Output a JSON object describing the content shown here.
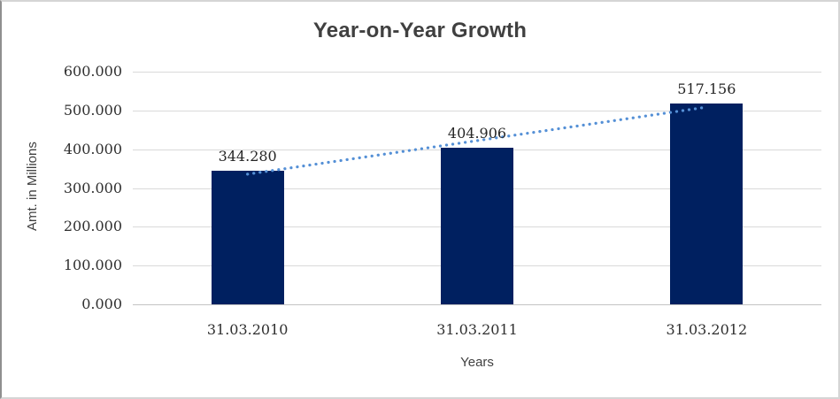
{
  "chart_data": {
    "type": "bar",
    "title": "Year-on-Year Growth",
    "xlabel": "Years",
    "ylabel": "Amt. in Millions",
    "categories": [
      "31.03.2010",
      "31.03.2011",
      "31.03.2012"
    ],
    "values": [
      344.28,
      404.906,
      517.156
    ],
    "data_labels": [
      "344.280",
      "404.906",
      "517.156"
    ],
    "ylim": [
      0,
      600
    ],
    "ytick_step": 100,
    "ytick_labels_top_to_bottom": [
      "600.000",
      "500.000",
      "400.000",
      "300.000",
      "200.000",
      "100.000",
      "0.000"
    ],
    "grid": true,
    "legend": false,
    "trendline": {
      "type": "linear",
      "style": "dotted",
      "start_value": 335.676,
      "end_value": 508.552,
      "color": "#5590d6"
    },
    "colors": {
      "bar": "#002060",
      "gridline": "#d9d9d9",
      "axis_line": "#c3c3c3",
      "tick_text": "#303030",
      "title_text": "#404040"
    }
  }
}
